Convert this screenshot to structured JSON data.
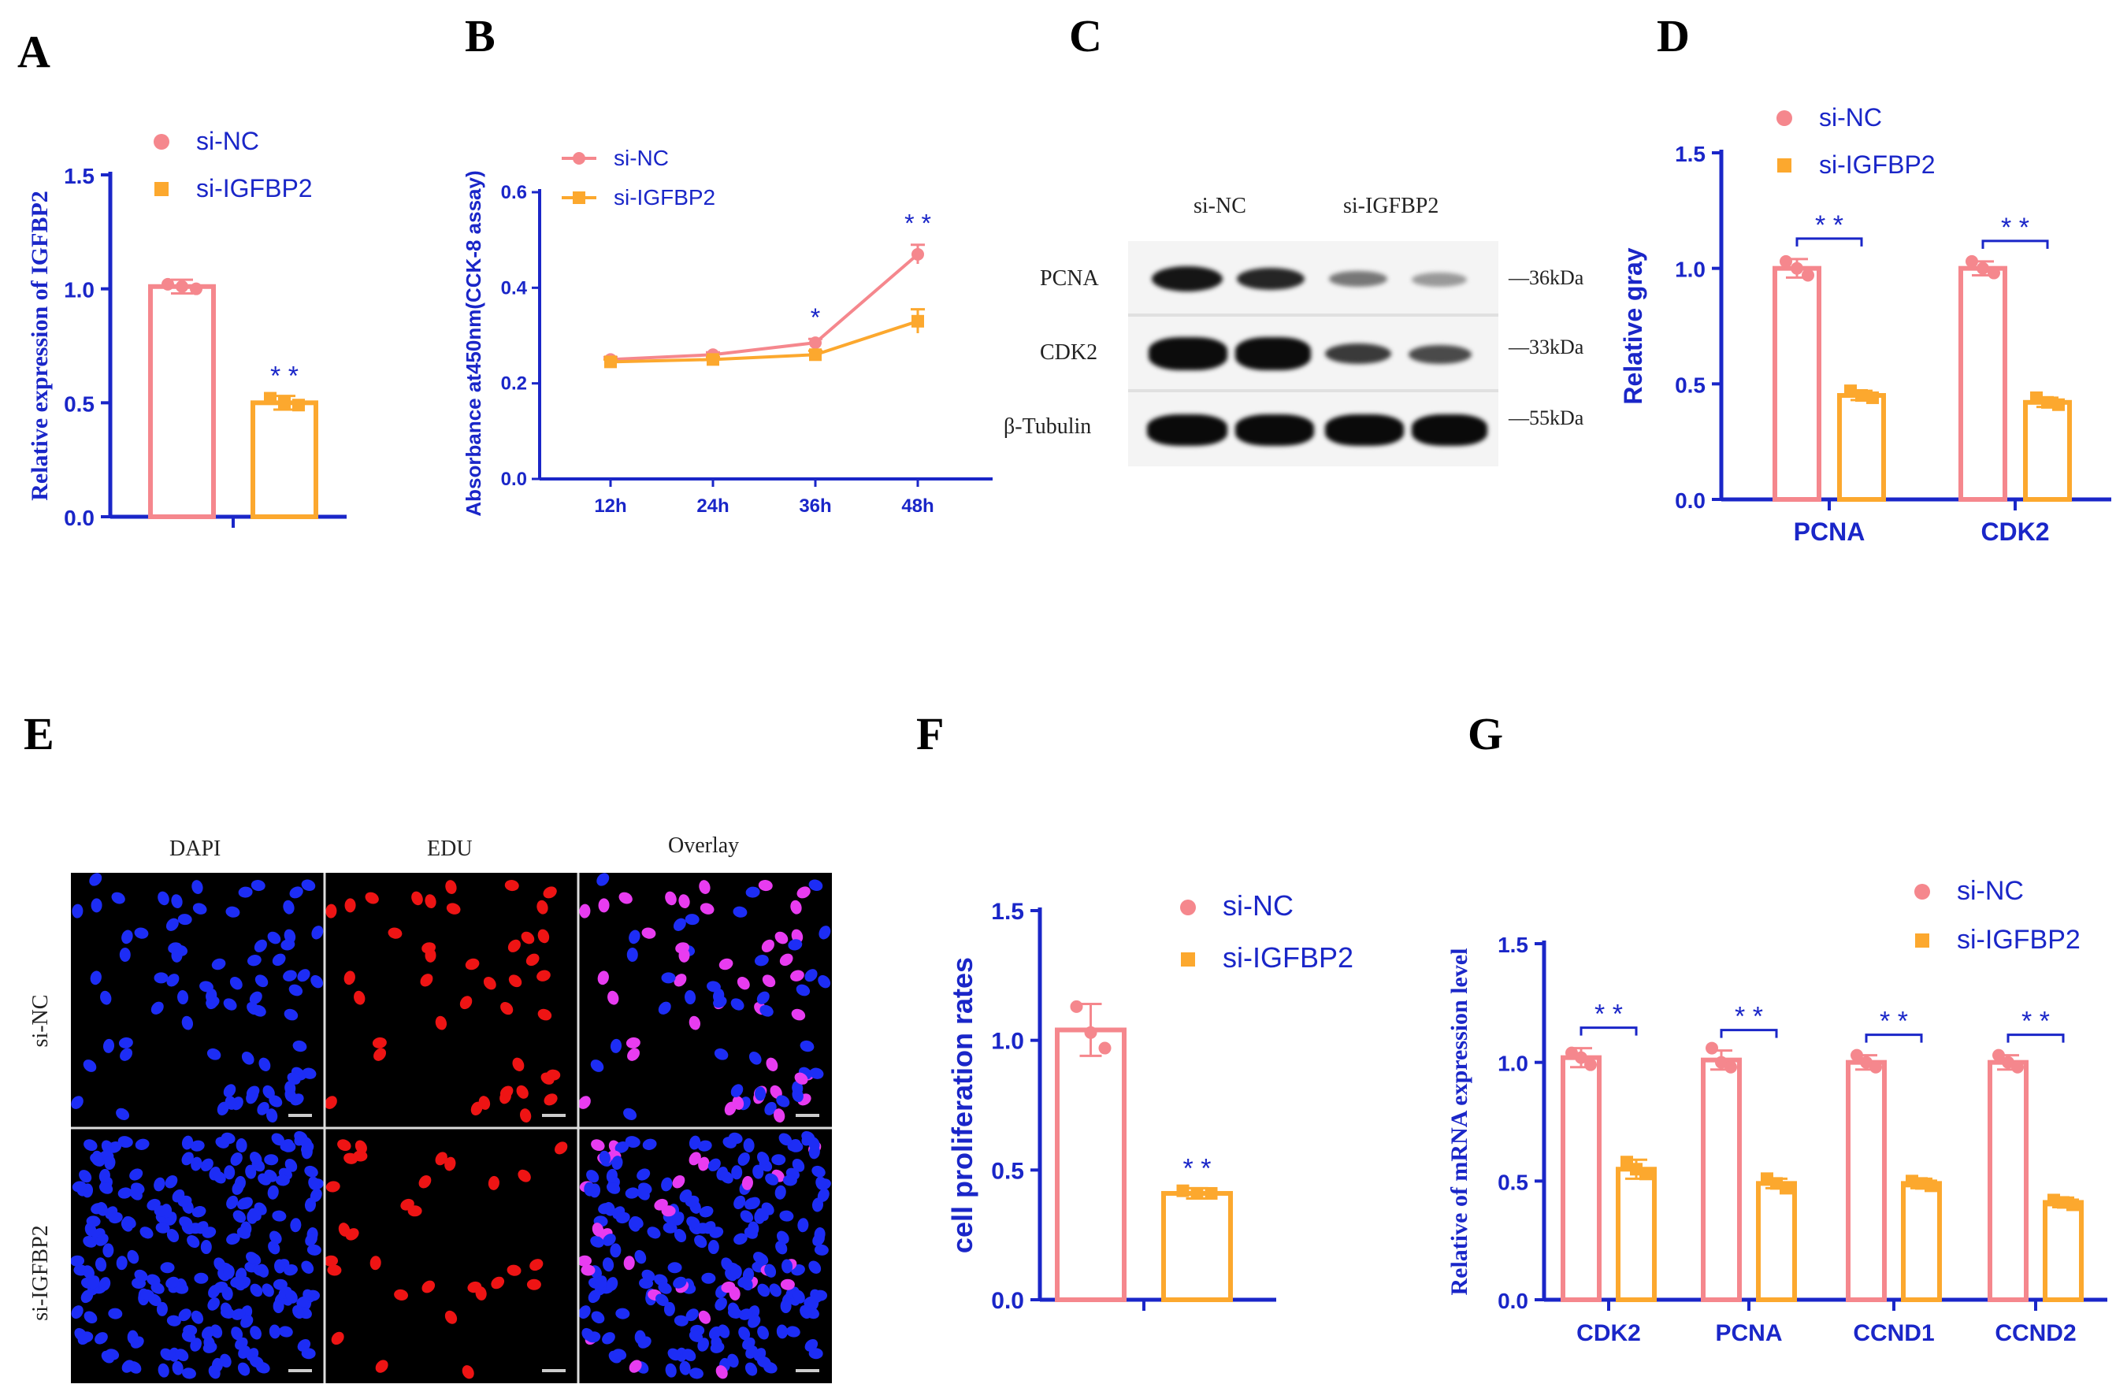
{
  "figure": {
    "panel_letters": [
      "A",
      "B",
      "C",
      "D",
      "E",
      "F",
      "G"
    ],
    "colors": {
      "si_nc": "#f5878d",
      "si_igfbp2": "#fca82e",
      "axis": "#1a26c8",
      "text": "#1a26c8"
    }
  },
  "chart_data": [
    {
      "id": "A",
      "type": "bar",
      "ylabel": "Relative expression of IGFBP2",
      "ylim": [
        0,
        1.5
      ],
      "yticks": [
        "0.0",
        "0.5",
        "1.0",
        "1.5"
      ],
      "categories": [
        ""
      ],
      "series": [
        {
          "name": "si-NC",
          "values": [
            1.01
          ],
          "errors": [
            0.03
          ],
          "points": [
            [
              1.02,
              1.01,
              1.0
            ]
          ]
        },
        {
          "name": "si-IGFBP2",
          "values": [
            0.5
          ],
          "errors": [
            0.03
          ],
          "points": [
            [
              0.52,
              0.5,
              0.49
            ]
          ]
        }
      ],
      "significance": [
        "* *"
      ],
      "legend": [
        "si-NC",
        "si-IGFBP2"
      ]
    },
    {
      "id": "B",
      "type": "line",
      "ylabel": "Absorbance at450nm(CCK-8 assay)",
      "ylim": [
        0,
        0.6
      ],
      "yticks": [
        "0.0",
        "0.2",
        "0.4",
        "0.6"
      ],
      "categories": [
        "12h",
        "24h",
        "36h",
        "48h"
      ],
      "series": [
        {
          "name": "si-NC",
          "values": [
            0.25,
            0.26,
            0.285,
            0.47
          ],
          "errors": [
            0.005,
            0.005,
            0.008,
            0.02
          ]
        },
        {
          "name": "si-IGFBP2",
          "values": [
            0.245,
            0.25,
            0.26,
            0.33
          ],
          "errors": [
            0.005,
            0.005,
            0.008,
            0.025
          ]
        }
      ],
      "significance": [
        "",
        "",
        "*",
        "* *"
      ],
      "legend": [
        "si-NC",
        "si-IGFBP2"
      ]
    },
    {
      "id": "D",
      "type": "bar",
      "ylabel": "Relative gray",
      "ylim": [
        0,
        1.5
      ],
      "yticks": [
        "0.0",
        "0.5",
        "1.0",
        "1.5"
      ],
      "categories": [
        "PCNA",
        "CDK2"
      ],
      "series": [
        {
          "name": "si-NC",
          "values": [
            1.0,
            1.0
          ],
          "errors": [
            0.04,
            0.03
          ],
          "points": [
            [
              1.03,
              1.0,
              0.97
            ],
            [
              1.03,
              1.0,
              0.98
            ]
          ]
        },
        {
          "name": "si-IGFBP2",
          "values": [
            0.45,
            0.42
          ],
          "errors": [
            0.02,
            0.02
          ],
          "points": [
            [
              0.47,
              0.45,
              0.44
            ],
            [
              0.44,
              0.42,
              0.41
            ]
          ]
        }
      ],
      "significance": [
        "* *",
        "* *"
      ],
      "legend": [
        "si-NC",
        "si-IGFBP2"
      ]
    },
    {
      "id": "F",
      "type": "bar",
      "ylabel": "cell proliferation rates",
      "ylim": [
        0,
        1.5
      ],
      "yticks": [
        "0.0",
        "0.5",
        "1.0",
        "1.5"
      ],
      "categories": [
        ""
      ],
      "series": [
        {
          "name": "si-NC",
          "values": [
            1.04
          ],
          "errors": [
            0.1
          ],
          "points": [
            [
              1.13,
              1.03,
              0.97
            ]
          ]
        },
        {
          "name": "si-IGFBP2",
          "values": [
            0.41
          ],
          "errors": [
            0.02
          ],
          "points": [
            [
              0.42,
              0.41,
              0.41
            ]
          ]
        }
      ],
      "significance": [
        "* *"
      ],
      "legend": [
        "si-NC",
        "si-IGFBP2"
      ]
    },
    {
      "id": "G",
      "type": "bar",
      "ylabel": "Relative of mRNA expression level",
      "ylim": [
        0,
        1.5
      ],
      "yticks": [
        "0.0",
        "0.5",
        "1.0",
        "1.5"
      ],
      "categories": [
        "CDK2",
        "PCNA",
        "CCND1",
        "CCND2"
      ],
      "series": [
        {
          "name": "si-NC",
          "values": [
            1.02,
            1.01,
            1.0,
            1.0
          ],
          "errors": [
            0.04,
            0.04,
            0.03,
            0.03
          ],
          "points": [
            [
              1.04,
              1.02,
              0.99
            ],
            [
              1.06,
              1.0,
              0.98
            ],
            [
              1.03,
              1.0,
              0.98
            ],
            [
              1.03,
              1.0,
              0.98
            ]
          ]
        },
        {
          "name": "si-IGFBP2",
          "values": [
            0.55,
            0.49,
            0.49,
            0.41
          ],
          "errors": [
            0.04,
            0.02,
            0.02,
            0.02
          ],
          "points": [
            [
              0.58,
              0.55,
              0.53
            ],
            [
              0.51,
              0.49,
              0.47
            ],
            [
              0.5,
              0.49,
              0.48
            ],
            [
              0.42,
              0.41,
              0.4
            ]
          ]
        }
      ],
      "significance": [
        "* *",
        "* *",
        "* *",
        "* *"
      ],
      "legend": [
        "si-NC",
        "si-IGFBP2"
      ]
    }
  ],
  "western_blot": {
    "group_labels": [
      "si-NC",
      "si-IGFBP2"
    ],
    "rows": [
      {
        "protein": "PCNA",
        "size": "36kDa",
        "intensities": [
          0.95,
          0.85,
          0.35,
          0.3
        ]
      },
      {
        "protein": "CDK2",
        "size": "33kDa",
        "intensities": [
          1.0,
          1.0,
          0.6,
          0.55
        ]
      },
      {
        "protein": "β-Tubulin",
        "size": "55kDa",
        "intensities": [
          1.0,
          1.0,
          1.0,
          1.0
        ]
      }
    ]
  },
  "microscopy": {
    "column_labels": [
      "DAPI",
      "EDU",
      "Overlay"
    ],
    "row_labels": [
      "si-NC",
      "si-IGFBP2"
    ]
  }
}
